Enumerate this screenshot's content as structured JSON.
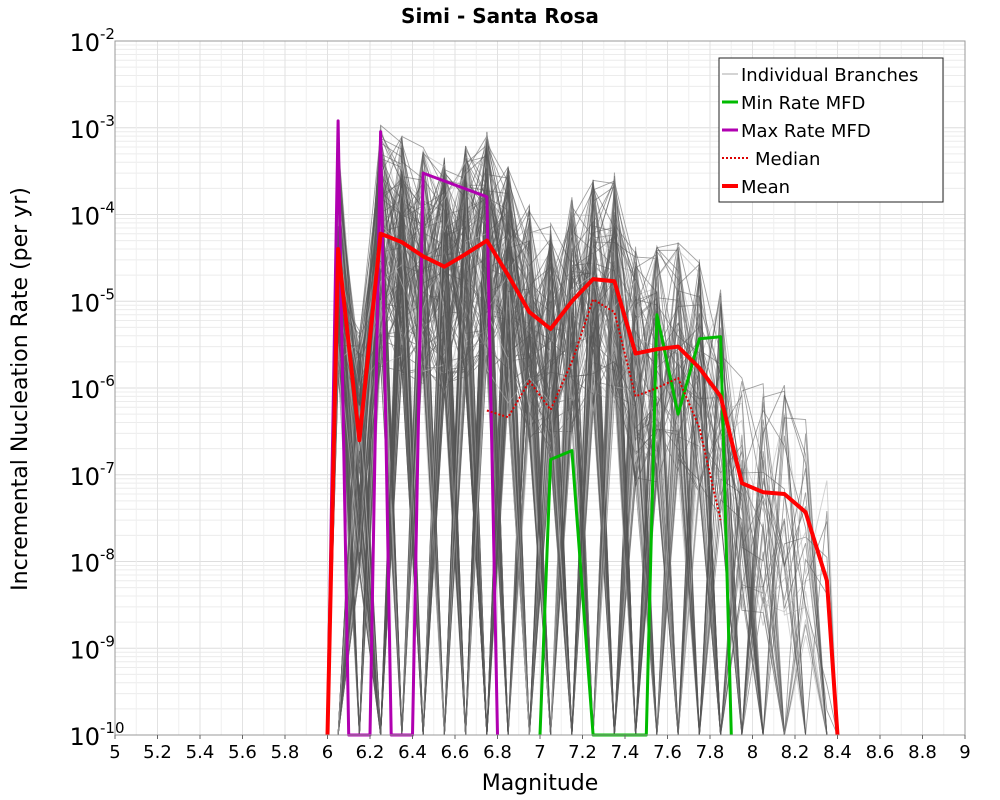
{
  "chart_data": {
    "type": "line",
    "title": "Simi - Santa Rosa",
    "xlabel": "Magnitude",
    "ylabel": "Incremental Nucleation Rate (per yr)",
    "xlim": [
      5,
      9
    ],
    "ylim": [
      1e-10,
      0.01
    ],
    "yscale": "log",
    "grid": true,
    "legend_position": "top-right",
    "xticks": [
      "5",
      "5.2",
      "5.4",
      "5.6",
      "5.8",
      "6",
      "6.2",
      "6.4",
      "6.6",
      "6.8",
      "7",
      "7.2",
      "7.4",
      "7.6",
      "7.8",
      "8",
      "8.2",
      "8.4",
      "8.6",
      "8.8",
      "9"
    ],
    "yticks": [
      {
        "base": "10",
        "exp": "-2"
      },
      {
        "base": "10",
        "exp": "-3"
      },
      {
        "base": "10",
        "exp": "-4"
      },
      {
        "base": "10",
        "exp": "-5"
      },
      {
        "base": "10",
        "exp": "-6"
      },
      {
        "base": "10",
        "exp": "-7"
      },
      {
        "base": "10",
        "exp": "-8"
      },
      {
        "base": "10",
        "exp": "-9"
      },
      {
        "base": "10",
        "exp": "-10"
      }
    ],
    "series": [
      {
        "name": "Individual Branches",
        "color": "#555555",
        "style": "thin",
        "note_values": "many overlapping branch curves spanning roughly M6.05–M8.35"
      },
      {
        "name": "Min Rate MFD",
        "color": "#00bb00",
        "style": "solid",
        "x": [
          7.0,
          7.05,
          7.15,
          7.25,
          7.5,
          7.55,
          7.65,
          7.75,
          7.85,
          7.9
        ],
        "y": [
          1e-10,
          1.5e-07,
          1.9e-07,
          1e-10,
          1e-10,
          7e-06,
          5e-07,
          3.7e-06,
          3.9e-06,
          1e-10
        ]
      },
      {
        "name": "Max Rate MFD",
        "color": "#b000b0",
        "style": "solid",
        "x": [
          6.0,
          6.05,
          6.1,
          6.2,
          6.25,
          6.3,
          6.4,
          6.45,
          6.75,
          6.8
        ],
        "y": [
          1e-10,
          0.0012,
          1e-10,
          1e-10,
          0.0009,
          1e-10,
          1e-10,
          0.0003,
          0.00016,
          1e-10
        ]
      },
      {
        "name": "Median",
        "color": "#dd0000",
        "style": "dotted",
        "x": [
          6.75,
          6.85,
          6.95,
          7.05,
          7.15,
          7.25,
          7.35,
          7.45,
          7.55,
          7.65,
          7.75,
          7.85
        ],
        "y": [
          5.5e-07,
          4.6e-07,
          1.2e-06,
          5.6e-07,
          2e-06,
          1.05e-05,
          7.5e-06,
          8e-07,
          1e-06,
          1.3e-06,
          3.5e-07,
          3e-08
        ]
      },
      {
        "name": "Mean",
        "color": "#ff0000",
        "style": "thick",
        "x": [
          6.0,
          6.05,
          6.15,
          6.25,
          6.35,
          6.45,
          6.55,
          6.65,
          6.75,
          6.85,
          6.95,
          7.05,
          7.15,
          7.25,
          7.35,
          7.45,
          7.55,
          7.65,
          7.75,
          7.85,
          7.95,
          8.05,
          8.15,
          8.25,
          8.35,
          8.4
        ],
        "y": [
          1e-10,
          4e-05,
          2.5e-07,
          6e-05,
          4.8e-05,
          3.3e-05,
          2.5e-05,
          3.5e-05,
          5e-05,
          2e-05,
          7.5e-06,
          4.8e-06,
          1e-05,
          1.8e-05,
          1.7e-05,
          2.5e-06,
          2.8e-06,
          3e-06,
          1.7e-06,
          8e-07,
          8e-08,
          6.3e-08,
          6e-08,
          3.7e-08,
          6e-09,
          1e-10
        ]
      }
    ]
  }
}
